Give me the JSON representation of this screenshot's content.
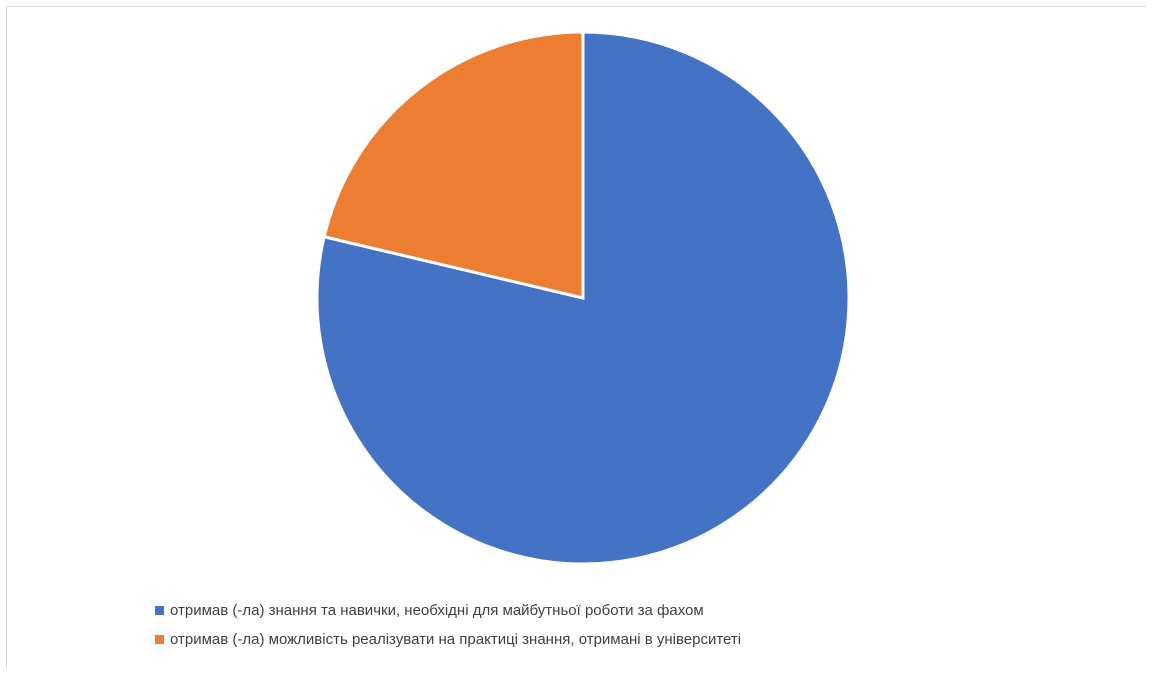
{
  "chart_data": {
    "type": "pie",
    "title": "",
    "categories": [
      "отримав (-ла) знання та навички, необхідні для майбутньої роботи за фахом",
      "отримав (-ла) можливість реалізувати на практиці знання, отримані в університеті"
    ],
    "values": [
      78.7,
      21.3
    ],
    "colors": [
      "#4472C4",
      "#ED7D31"
    ],
    "start_angle_deg": 0,
    "direction": "clockwise",
    "legend_position": "bottom-left"
  }
}
